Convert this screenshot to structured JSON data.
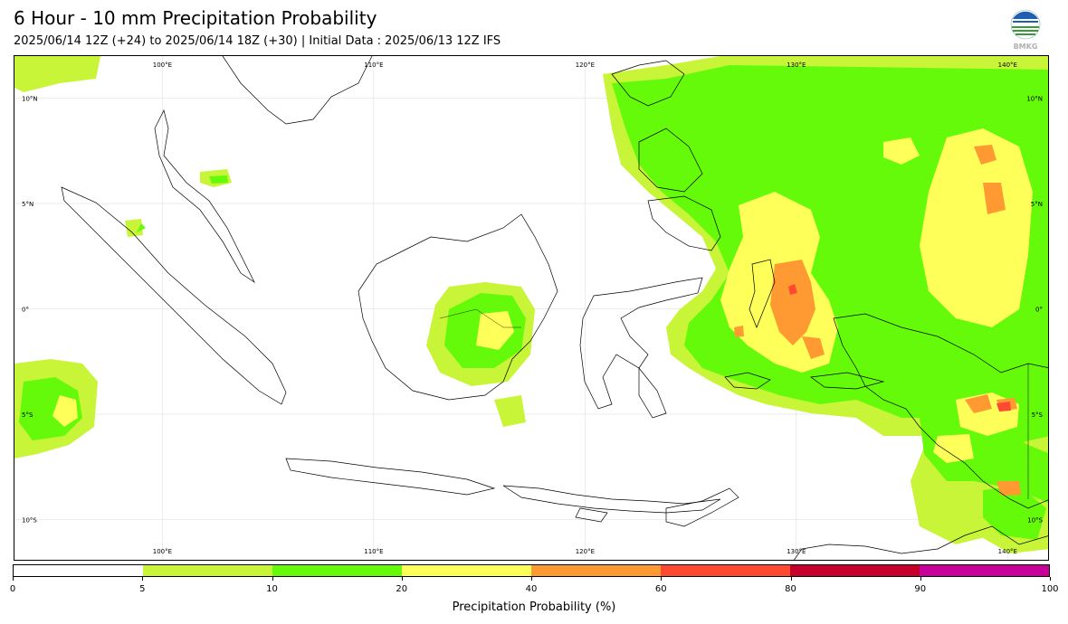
{
  "header": {
    "title": "6 Hour - 10 mm Precipitation Probability",
    "subtitle": "2025/06/14 12Z (+24) to 2025/06/14 18Z (+30) | Initial Data : 2025/06/13 12Z IFS",
    "logo_text": "BMKG"
  },
  "map": {
    "lon_range": [
      93,
      142
    ],
    "lat_range": [
      -12,
      12
    ],
    "lon_labels": [
      "100°E",
      "110°E",
      "120°E",
      "130°E",
      "140°E"
    ],
    "lon_values": [
      100,
      110,
      120,
      130,
      140
    ],
    "lat_labels": [
      "10°N",
      "5°N",
      "0°",
      "5°S",
      "10°S"
    ],
    "lat_values": [
      10,
      5,
      0,
      -5,
      -10
    ]
  },
  "colorbar": {
    "label": "Precipitation Probability (%)",
    "ticks": [
      "0",
      "5",
      "10",
      "20",
      "40",
      "60",
      "80",
      "90",
      "100"
    ],
    "colors": [
      "#ffffff",
      "#c8f537",
      "#64fa0a",
      "#ffff5a",
      "#ff9a32",
      "#ff4a32",
      "#c8002c",
      "#c8009a"
    ]
  },
  "colors": {
    "p5": "#c8f537",
    "p10": "#64fa0a",
    "p20": "#ffff5a",
    "p40": "#ff9a32",
    "p60": "#ff4a32"
  }
}
